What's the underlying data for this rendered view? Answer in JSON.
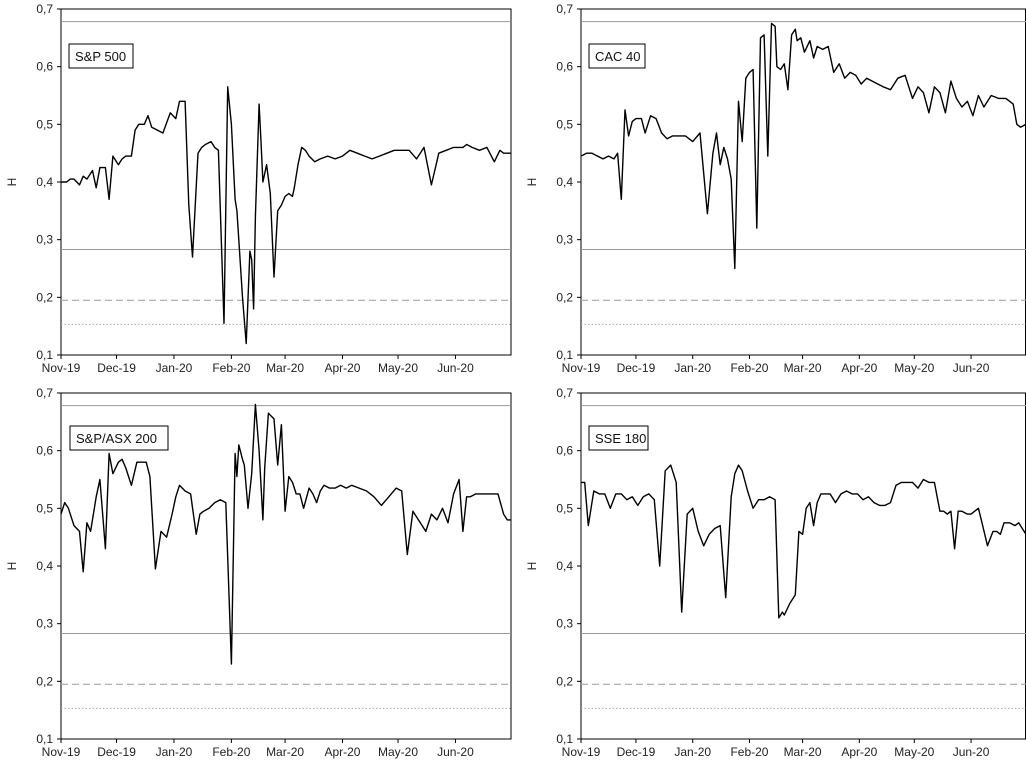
{
  "chart_data": [
    {
      "type": "line",
      "title": "S&P 500",
      "ylabel": "H",
      "ylim": [
        0.1,
        0.7
      ],
      "yticks": [
        "0,1",
        "0,2",
        "0,3",
        "0,4",
        "0,5",
        "0,6",
        "0,7"
      ],
      "xticks": [
        "Nov-19",
        "Dec-19",
        "Jan-20",
        "Feb-20",
        "Mar-20",
        "Apr-20",
        "May-20",
        "Jun-20"
      ],
      "reference_lines": [
        {
          "y": 0.678,
          "style": "solid"
        },
        {
          "y": 0.283,
          "style": "solid"
        },
        {
          "y": 0.195,
          "style": "dashed"
        },
        {
          "y": 0.153,
          "style": "dotted"
        }
      ],
      "x": [
        "2019-11-01",
        "2019-11-04",
        "2019-11-06",
        "2019-11-08",
        "2019-11-11",
        "2019-11-13",
        "2019-11-15",
        "2019-11-18",
        "2019-11-20",
        "2019-11-22",
        "2019-11-25",
        "2019-11-27",
        "2019-11-29",
        "2019-12-02",
        "2019-12-04",
        "2019-12-06",
        "2019-12-09",
        "2019-12-11",
        "2019-12-13",
        "2019-12-16",
        "2019-12-18",
        "2019-12-20",
        "2019-12-23",
        "2019-12-26",
        "2019-12-30",
        "2020-01-02",
        "2020-01-04",
        "2020-01-07",
        "2020-01-09",
        "2020-01-11",
        "2020-01-14",
        "2020-01-16",
        "2020-01-18",
        "2020-01-21",
        "2020-01-23",
        "2020-01-25",
        "2020-01-28",
        "2020-01-30",
        "2020-02-01",
        "2020-02-03",
        "2020-02-04",
        "2020-02-05",
        "2020-02-07",
        "2020-02-09",
        "2020-02-11",
        "2020-02-12",
        "2020-02-13",
        "2020-02-14",
        "2020-02-16",
        "2020-02-17",
        "2020-02-18",
        "2020-02-20",
        "2020-02-22",
        "2020-02-24",
        "2020-02-26",
        "2020-02-28",
        "2020-03-01",
        "2020-03-03",
        "2020-03-05",
        "2020-03-06",
        "2020-03-08",
        "2020-03-10",
        "2020-03-12",
        "2020-03-14",
        "2020-03-17",
        "2020-03-20",
        "2020-03-24",
        "2020-03-28",
        "2020-04-01",
        "2020-04-05",
        "2020-04-09",
        "2020-04-13",
        "2020-04-17",
        "2020-04-21",
        "2020-04-25",
        "2020-04-29",
        "2020-05-03",
        "2020-05-07",
        "2020-05-11",
        "2020-05-15",
        "2020-05-19",
        "2020-05-23",
        "2020-05-27",
        "2020-05-31",
        "2020-06-03",
        "2020-06-05",
        "2020-06-07",
        "2020-06-10",
        "2020-06-14",
        "2020-06-18",
        "2020-06-22",
        "2020-06-25",
        "2020-06-27",
        "2020-06-29",
        "2020-07-01"
      ],
      "y": [
        0.4,
        0.4,
        0.405,
        0.405,
        0.395,
        0.41,
        0.405,
        0.42,
        0.39,
        0.425,
        0.425,
        0.37,
        0.445,
        0.43,
        0.44,
        0.445,
        0.445,
        0.49,
        0.5,
        0.5,
        0.515,
        0.495,
        0.49,
        0.485,
        0.52,
        0.51,
        0.54,
        0.54,
        0.36,
        0.27,
        0.45,
        0.46,
        0.465,
        0.47,
        0.46,
        0.455,
        0.155,
        0.565,
        0.5,
        0.37,
        0.35,
        0.3,
        0.2,
        0.12,
        0.28,
        0.265,
        0.18,
        0.34,
        0.535,
        0.47,
        0.4,
        0.43,
        0.38,
        0.235,
        0.35,
        0.36,
        0.375,
        0.38,
        0.375,
        0.39,
        0.43,
        0.46,
        0.455,
        0.445,
        0.435,
        0.44,
        0.445,
        0.44,
        0.445,
        0.455,
        0.45,
        0.445,
        0.44,
        0.445,
        0.45,
        0.455,
        0.455,
        0.455,
        0.44,
        0.46,
        0.395,
        0.45,
        0.455,
        0.46,
        0.46,
        0.46,
        0.465,
        0.46,
        0.455,
        0.46,
        0.435,
        0.455,
        0.45,
        0.45,
        0.45
      ]
    },
    {
      "type": "line",
      "title": "CAC 40",
      "ylabel": "H",
      "ylim": [
        0.1,
        0.7
      ],
      "yticks": [
        "0,1",
        "0,2",
        "0,3",
        "0,4",
        "0,5",
        "0,6",
        "0,7"
      ],
      "xticks": [
        "Nov-19",
        "Dec-19",
        "Jan-20",
        "Feb-20",
        "Mar-20",
        "Apr-20",
        "May-20",
        "Jun-20"
      ],
      "reference_lines": [
        {
          "y": 0.678,
          "style": "solid"
        },
        {
          "y": 0.283,
          "style": "solid"
        },
        {
          "y": 0.195,
          "style": "dashed"
        },
        {
          "y": 0.153,
          "style": "dotted"
        }
      ],
      "x": [
        "2019-11-01",
        "2019-11-04",
        "2019-11-07",
        "2019-11-10",
        "2019-11-13",
        "2019-11-16",
        "2019-11-19",
        "2019-11-21",
        "2019-11-23",
        "2019-11-25",
        "2019-11-27",
        "2019-11-29",
        "2019-12-01",
        "2019-12-04",
        "2019-12-06",
        "2019-12-09",
        "2019-12-12",
        "2019-12-15",
        "2019-12-18",
        "2019-12-21",
        "2019-12-24",
        "2019-12-28",
        "2020-01-01",
        "2020-01-05",
        "2020-01-09",
        "2020-01-12",
        "2020-01-14",
        "2020-01-16",
        "2020-01-18",
        "2020-01-20",
        "2020-01-22",
        "2020-01-24",
        "2020-01-26",
        "2020-01-28",
        "2020-01-30",
        "2020-02-01",
        "2020-02-03",
        "2020-02-05",
        "2020-02-07",
        "2020-02-09",
        "2020-02-11",
        "2020-02-13",
        "2020-02-15",
        "2020-02-16",
        "2020-02-18",
        "2020-02-20",
        "2020-02-22",
        "2020-02-24",
        "2020-02-26",
        "2020-02-27",
        "2020-02-29",
        "2020-03-02",
        "2020-03-05",
        "2020-03-07",
        "2020-03-09",
        "2020-03-12",
        "2020-03-15",
        "2020-03-18",
        "2020-03-21",
        "2020-03-24",
        "2020-03-27",
        "2020-03-30",
        "2020-04-02",
        "2020-04-05",
        "2020-04-08",
        "2020-04-11",
        "2020-04-14",
        "2020-04-18",
        "2020-04-22",
        "2020-04-26",
        "2020-04-30",
        "2020-05-03",
        "2020-05-06",
        "2020-05-09",
        "2020-05-12",
        "2020-05-15",
        "2020-05-18",
        "2020-05-21",
        "2020-05-24",
        "2020-05-27",
        "2020-05-30",
        "2020-06-02",
        "2020-06-05",
        "2020-06-08",
        "2020-06-12",
        "2020-06-16",
        "2020-06-20",
        "2020-06-24",
        "2020-06-26",
        "2020-06-28",
        "2020-07-01"
      ],
      "y": [
        0.445,
        0.45,
        0.45,
        0.445,
        0.44,
        0.445,
        0.44,
        0.45,
        0.37,
        0.525,
        0.48,
        0.505,
        0.51,
        0.51,
        0.485,
        0.515,
        0.51,
        0.485,
        0.475,
        0.48,
        0.48,
        0.48,
        0.47,
        0.485,
        0.345,
        0.45,
        0.485,
        0.43,
        0.46,
        0.44,
        0.405,
        0.25,
        0.54,
        0.47,
        0.58,
        0.59,
        0.595,
        0.32,
        0.65,
        0.655,
        0.445,
        0.675,
        0.67,
        0.6,
        0.595,
        0.605,
        0.56,
        0.655,
        0.665,
        0.645,
        0.65,
        0.625,
        0.645,
        0.615,
        0.635,
        0.63,
        0.635,
        0.59,
        0.605,
        0.58,
        0.59,
        0.585,
        0.57,
        0.58,
        0.575,
        0.57,
        0.565,
        0.56,
        0.58,
        0.585,
        0.545,
        0.565,
        0.555,
        0.52,
        0.565,
        0.555,
        0.52,
        0.575,
        0.545,
        0.53,
        0.54,
        0.515,
        0.55,
        0.53,
        0.55,
        0.545,
        0.545,
        0.535,
        0.5,
        0.495,
        0.5
      ]
    },
    {
      "type": "line",
      "title": "S&P/ASX 200",
      "ylabel": "H",
      "ylim": [
        0.1,
        0.7
      ],
      "yticks": [
        "0,1",
        "0,2",
        "0,3",
        "0,4",
        "0,5",
        "0,6",
        "0,7"
      ],
      "xticks": [
        "Nov-19",
        "Dec-19",
        "Jan-20",
        "Feb-20",
        "Mar-20",
        "Apr-20",
        "May-20",
        "Jun-20"
      ],
      "reference_lines": [
        {
          "y": 0.678,
          "style": "solid"
        },
        {
          "y": 0.283,
          "style": "solid"
        },
        {
          "y": 0.195,
          "style": "dashed"
        },
        {
          "y": 0.153,
          "style": "dotted"
        }
      ],
      "x": [
        "2019-11-01",
        "2019-11-03",
        "2019-11-05",
        "2019-11-08",
        "2019-11-11",
        "2019-11-13",
        "2019-11-15",
        "2019-11-17",
        "2019-11-20",
        "2019-11-22",
        "2019-11-25",
        "2019-11-27",
        "2019-11-29",
        "2019-12-02",
        "2019-12-04",
        "2019-12-06",
        "2019-12-09",
        "2019-12-12",
        "2019-12-15",
        "2019-12-17",
        "2019-12-19",
        "2019-12-22",
        "2019-12-25",
        "2019-12-28",
        "2019-12-31",
        "2020-01-02",
        "2020-01-04",
        "2020-01-07",
        "2020-01-10",
        "2020-01-13",
        "2020-01-15",
        "2020-01-17",
        "2020-01-20",
        "2020-01-23",
        "2020-01-26",
        "2020-01-29",
        "2020-02-01",
        "2020-02-03",
        "2020-02-04",
        "2020-02-05",
        "2020-02-07",
        "2020-02-08",
        "2020-02-10",
        "2020-02-12",
        "2020-02-14",
        "2020-02-16",
        "2020-02-18",
        "2020-02-19",
        "2020-02-21",
        "2020-02-24",
        "2020-02-26",
        "2020-02-28",
        "2020-03-01",
        "2020-03-03",
        "2020-03-05",
        "2020-03-07",
        "2020-03-09",
        "2020-03-11",
        "2020-03-14",
        "2020-03-16",
        "2020-03-18",
        "2020-03-20",
        "2020-03-22",
        "2020-03-25",
        "2020-03-28",
        "2020-03-31",
        "2020-04-03",
        "2020-04-06",
        "2020-04-10",
        "2020-04-14",
        "2020-04-18",
        "2020-04-22",
        "2020-04-26",
        "2020-04-30",
        "2020-05-03",
        "2020-05-06",
        "2020-05-09",
        "2020-05-11",
        "2020-05-13",
        "2020-05-16",
        "2020-05-19",
        "2020-05-22",
        "2020-05-25",
        "2020-05-28",
        "2020-05-31",
        "2020-06-03",
        "2020-06-05",
        "2020-06-07",
        "2020-06-09",
        "2020-06-12",
        "2020-06-16",
        "2020-06-20",
        "2020-06-24",
        "2020-06-27",
        "2020-06-29",
        "2020-07-01"
      ],
      "y": [
        0.49,
        0.51,
        0.5,
        0.47,
        0.46,
        0.39,
        0.475,
        0.46,
        0.52,
        0.55,
        0.43,
        0.595,
        0.56,
        0.58,
        0.585,
        0.57,
        0.54,
        0.58,
        0.58,
        0.58,
        0.555,
        0.395,
        0.46,
        0.45,
        0.49,
        0.52,
        0.54,
        0.53,
        0.525,
        0.455,
        0.49,
        0.495,
        0.5,
        0.51,
        0.515,
        0.51,
        0.23,
        0.595,
        0.555,
        0.61,
        0.585,
        0.575,
        0.5,
        0.56,
        0.68,
        0.6,
        0.48,
        0.57,
        0.665,
        0.655,
        0.575,
        0.645,
        0.495,
        0.555,
        0.545,
        0.525,
        0.525,
        0.5,
        0.535,
        0.525,
        0.51,
        0.53,
        0.54,
        0.535,
        0.535,
        0.54,
        0.535,
        0.54,
        0.535,
        0.53,
        0.52,
        0.505,
        0.52,
        0.535,
        0.53,
        0.42,
        0.495,
        0.485,
        0.475,
        0.46,
        0.49,
        0.48,
        0.5,
        0.475,
        0.525,
        0.55,
        0.46,
        0.52,
        0.52,
        0.525,
        0.525,
        0.525,
        0.525,
        0.49,
        0.48,
        0.48
      ]
    },
    {
      "type": "line",
      "title": "SSE 180",
      "ylabel": "H",
      "ylim": [
        0.1,
        0.7
      ],
      "yticks": [
        "0,1",
        "0,2",
        "0,3",
        "0,4",
        "0,5",
        "0,6",
        "0,7"
      ],
      "xticks": [
        "Nov-19",
        "Dec-19",
        "Jan-20",
        "Feb-20",
        "Mar-20",
        "Apr-20",
        "May-20",
        "Jun-20"
      ],
      "reference_lines": [
        {
          "y": 0.678,
          "style": "solid"
        },
        {
          "y": 0.283,
          "style": "solid"
        },
        {
          "y": 0.195,
          "style": "dashed"
        },
        {
          "y": 0.153,
          "style": "dotted"
        }
      ],
      "x": [
        "2019-11-01",
        "2019-11-03",
        "2019-11-05",
        "2019-11-08",
        "2019-11-11",
        "2019-11-14",
        "2019-11-17",
        "2019-11-20",
        "2019-11-23",
        "2019-11-26",
        "2019-11-29",
        "2019-12-02",
        "2019-12-05",
        "2019-12-08",
        "2019-12-11",
        "2019-12-14",
        "2019-12-17",
        "2019-12-20",
        "2019-12-23",
        "2019-12-26",
        "2019-12-29",
        "2020-01-01",
        "2020-01-04",
        "2020-01-07",
        "2020-01-10",
        "2020-01-13",
        "2020-01-16",
        "2020-01-19",
        "2020-01-22",
        "2020-01-24",
        "2020-01-26",
        "2020-01-28",
        "2020-01-31",
        "2020-02-03",
        "2020-02-06",
        "2020-02-09",
        "2020-02-12",
        "2020-02-15",
        "2020-02-17",
        "2020-02-18",
        "2020-02-19",
        "2020-02-20",
        "2020-02-23",
        "2020-02-26",
        "2020-02-28",
        "2020-03-01",
        "2020-03-03",
        "2020-03-05",
        "2020-03-07",
        "2020-03-09",
        "2020-03-11",
        "2020-03-13",
        "2020-03-16",
        "2020-03-19",
        "2020-03-22",
        "2020-03-25",
        "2020-03-28",
        "2020-03-31",
        "2020-04-03",
        "2020-04-06",
        "2020-04-09",
        "2020-04-12",
        "2020-04-15",
        "2020-04-18",
        "2020-04-21",
        "2020-04-24",
        "2020-04-27",
        "2020-04-30",
        "2020-05-03",
        "2020-05-06",
        "2020-05-09",
        "2020-05-12",
        "2020-05-15",
        "2020-05-17",
        "2020-05-19",
        "2020-05-21",
        "2020-05-23",
        "2020-05-25",
        "2020-05-27",
        "2020-05-30",
        "2020-06-01",
        "2020-06-03",
        "2020-06-05",
        "2020-06-07",
        "2020-06-10",
        "2020-06-13",
        "2020-06-15",
        "2020-06-17",
        "2020-06-19",
        "2020-06-22",
        "2020-06-25",
        "2020-06-27",
        "2020-06-29",
        "2020-07-01"
      ],
      "y": [
        0.545,
        0.545,
        0.47,
        0.53,
        0.525,
        0.525,
        0.5,
        0.525,
        0.525,
        0.515,
        0.52,
        0.505,
        0.52,
        0.525,
        0.515,
        0.4,
        0.565,
        0.575,
        0.545,
        0.32,
        0.49,
        0.5,
        0.46,
        0.435,
        0.455,
        0.465,
        0.47,
        0.345,
        0.52,
        0.56,
        0.575,
        0.565,
        0.53,
        0.5,
        0.515,
        0.515,
        0.52,
        0.515,
        0.31,
        0.315,
        0.32,
        0.315,
        0.335,
        0.35,
        0.46,
        0.455,
        0.5,
        0.51,
        0.47,
        0.51,
        0.525,
        0.525,
        0.525,
        0.51,
        0.525,
        0.53,
        0.525,
        0.525,
        0.515,
        0.52,
        0.51,
        0.505,
        0.505,
        0.51,
        0.54,
        0.545,
        0.545,
        0.545,
        0.535,
        0.55,
        0.545,
        0.545,
        0.495,
        0.495,
        0.49,
        0.495,
        0.43,
        0.495,
        0.495,
        0.49,
        0.49,
        0.495,
        0.5,
        0.475,
        0.435,
        0.46,
        0.46,
        0.455,
        0.475,
        0.475,
        0.47,
        0.475,
        0.465,
        0.455
      ]
    }
  ]
}
